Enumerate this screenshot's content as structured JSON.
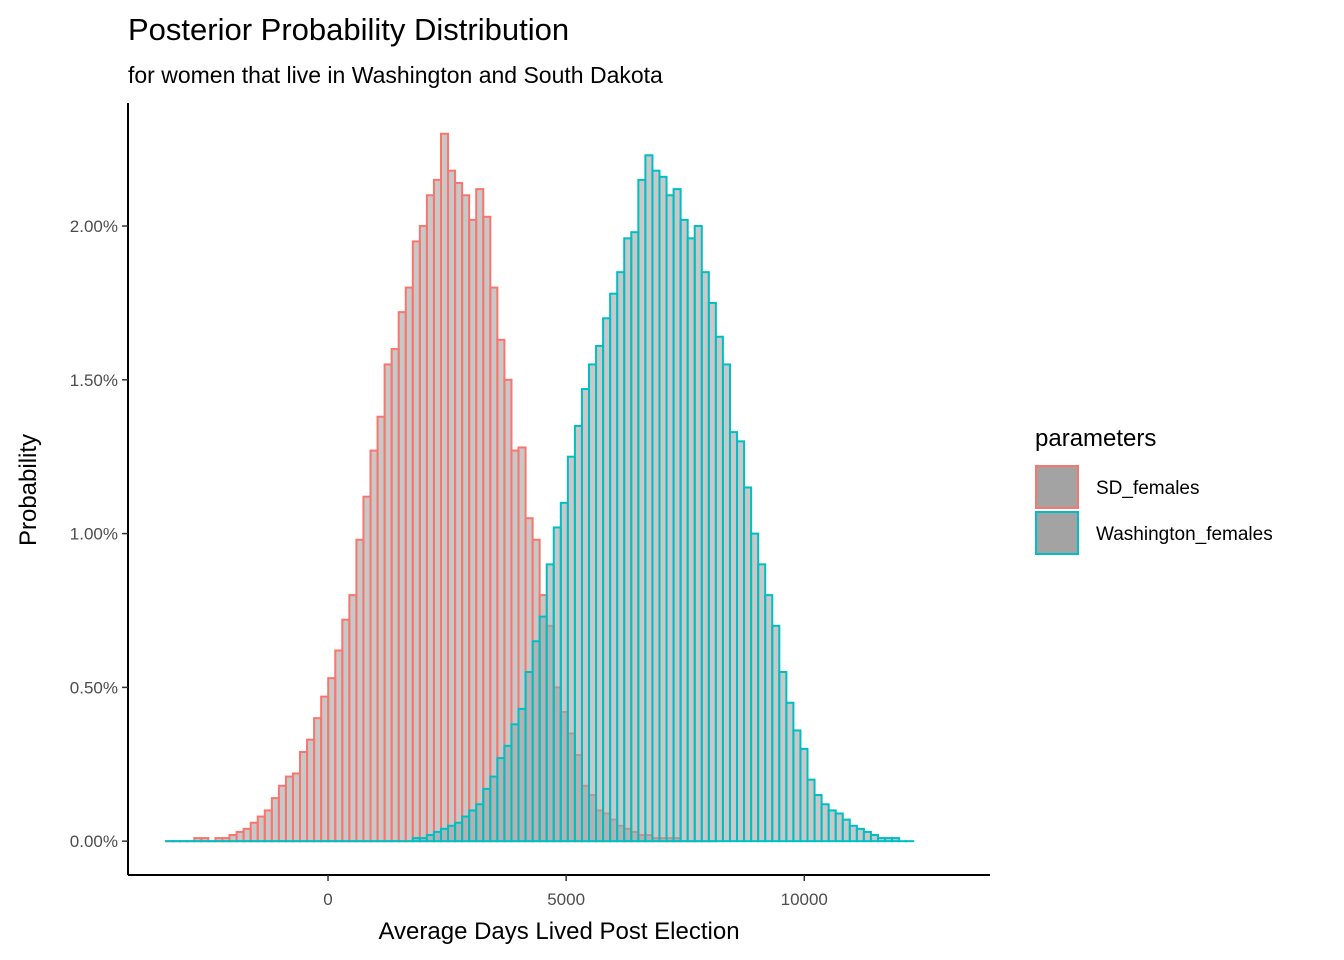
{
  "chart_data": {
    "type": "bar",
    "subtype": "histogram",
    "title": "Posterior Probability Distribution",
    "subtitle": "for women that live in Washington and South Dakota",
    "xlabel": "Average Days Lived Post Election",
    "ylabel": "Probability",
    "xlim": [
      -4200,
      13900
    ],
    "ylim": [
      -0.11,
      2.4
    ],
    "x_ticks": [
      0,
      5000,
      10000
    ],
    "x_tick_labels": [
      "0",
      "5000",
      "10000"
    ],
    "y_ticks": [
      0,
      0.5,
      1.0,
      1.5,
      2.0
    ],
    "y_tick_labels": [
      "0.00%",
      "0.50%",
      "1.00%",
      "1.50%",
      "2.00%"
    ],
    "bin_width": 148,
    "bin_start": -3400,
    "bar_fill": "#A3A3A3",
    "legend": {
      "title": "parameters",
      "position": "right",
      "entries": [
        "SD_females",
        "Washington_females"
      ]
    },
    "series": [
      {
        "name": "SD_females",
        "color": "#F8766D",
        "values": [
          0.0,
          0.0,
          0.0,
          0.0,
          0.01,
          0.01,
          0.0,
          0.01,
          0.01,
          0.02,
          0.03,
          0.04,
          0.06,
          0.08,
          0.1,
          0.14,
          0.18,
          0.21,
          0.22,
          0.29,
          0.33,
          0.4,
          0.47,
          0.53,
          0.62,
          0.72,
          0.8,
          0.98,
          1.12,
          1.27,
          1.38,
          1.55,
          1.6,
          1.72,
          1.8,
          1.95,
          2.0,
          2.1,
          2.15,
          2.3,
          2.18,
          2.14,
          2.1,
          2.02,
          2.12,
          2.03,
          1.8,
          1.63,
          1.5,
          1.27,
          1.28,
          1.05,
          0.98,
          0.8,
          0.7,
          0.5,
          0.42,
          0.35,
          0.28,
          0.18,
          0.15,
          0.1,
          0.09,
          0.07,
          0.05,
          0.04,
          0.03,
          0.02,
          0.02,
          0.01,
          0.01,
          0.01,
          0.01,
          0.0,
          0.0,
          0.0,
          0.0,
          0.0
        ]
      },
      {
        "name": "Washington_females",
        "color": "#00BFC4",
        "values": [
          0.0,
          0.0,
          0.0,
          0.0,
          0.0,
          0.0,
          0.0,
          0.0,
          0.0,
          0.0,
          0.0,
          0.0,
          0.0,
          0.0,
          0.0,
          0.0,
          0.0,
          0.0,
          0.0,
          0.0,
          0.0,
          0.0,
          0.0,
          0.0,
          0.0,
          0.0,
          0.0,
          0.0,
          0.0,
          0.0,
          0.0,
          0.0,
          0.0,
          0.0,
          0.0,
          0.01,
          0.01,
          0.02,
          0.03,
          0.04,
          0.05,
          0.06,
          0.08,
          0.1,
          0.12,
          0.17,
          0.21,
          0.27,
          0.31,
          0.38,
          0.43,
          0.55,
          0.65,
          0.73,
          0.9,
          1.02,
          1.1,
          1.25,
          1.35,
          1.47,
          1.55,
          1.61,
          1.7,
          1.78,
          1.85,
          1.96,
          1.98,
          2.15,
          2.23,
          2.18,
          2.16,
          2.1,
          2.12,
          2.02,
          1.96,
          2.0,
          1.85,
          1.75,
          1.64,
          1.55,
          1.33,
          1.3,
          1.15,
          1.0,
          0.9,
          0.8,
          0.7,
          0.55,
          0.45,
          0.36,
          0.3,
          0.2,
          0.15,
          0.12,
          0.1,
          0.09,
          0.07,
          0.05,
          0.04,
          0.03,
          0.02,
          0.01,
          0.01,
          0.01,
          0.0,
          0.0
        ]
      }
    ]
  }
}
